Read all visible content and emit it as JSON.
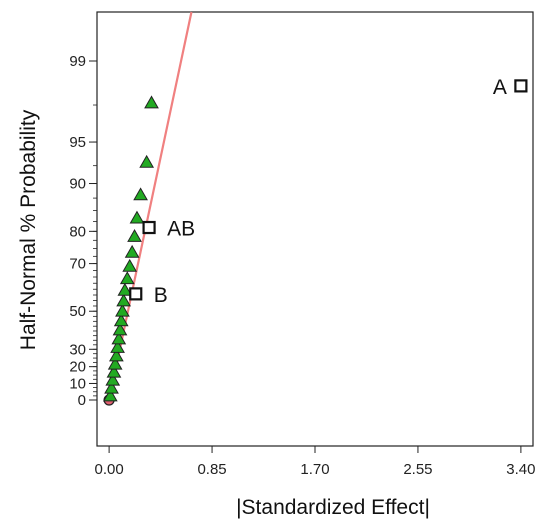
{
  "chart_data": {
    "type": "scatter",
    "title": "",
    "xlabel": "|Standardized Effect|",
    "ylabel": "Half-Normal % Probability",
    "xlim": [
      -0.1,
      3.5
    ],
    "x_ticks": [
      "0.00",
      "0.85",
      "1.70",
      "2.55",
      "3.40"
    ],
    "x_tick_values": [
      0,
      0.85,
      1.7,
      2.55,
      3.4
    ],
    "y_ticks": [
      "0",
      "10",
      "20",
      "30",
      "50",
      "70",
      "80",
      "90",
      "95",
      "99"
    ],
    "y_tick_values": [
      0,
      10,
      20,
      30,
      50,
      70,
      80,
      90,
      95,
      99
    ],
    "y_scale": "half-normal probability",
    "grid": false,
    "fit_line": {
      "color": "#f08080",
      "x": [
        0,
        0.68
      ],
      "y": [
        0,
        99.6
      ]
    },
    "error_points": {
      "marker": "triangle",
      "color": "#22aa22",
      "x": [
        0.01,
        0.02,
        0.03,
        0.04,
        0.05,
        0.06,
        0.07,
        0.08,
        0.09,
        0.1,
        0.11,
        0.12,
        0.13,
        0.15,
        0.17,
        0.19,
        0.21,
        0.23,
        0.26,
        0.31,
        0.35
      ],
      "y": [
        2.4,
        7.1,
        11.9,
        16.7,
        21.4,
        26.2,
        31,
        35.7,
        40.5,
        45.2,
        50,
        54.8,
        59.5,
        64.3,
        69,
        73.8,
        78.6,
        83.3,
        88.1,
        92.9,
        97.6
      ]
    },
    "effects": [
      {
        "label": "A",
        "x": 3.4,
        "y": 98.3
      },
      {
        "label": "AB",
        "x": 0.33,
        "y": 81
      },
      {
        "label": "B",
        "x": 0.22,
        "y": 58
      }
    ],
    "origin_point": {
      "x": 0,
      "y": 0,
      "color": "#e06070"
    }
  }
}
